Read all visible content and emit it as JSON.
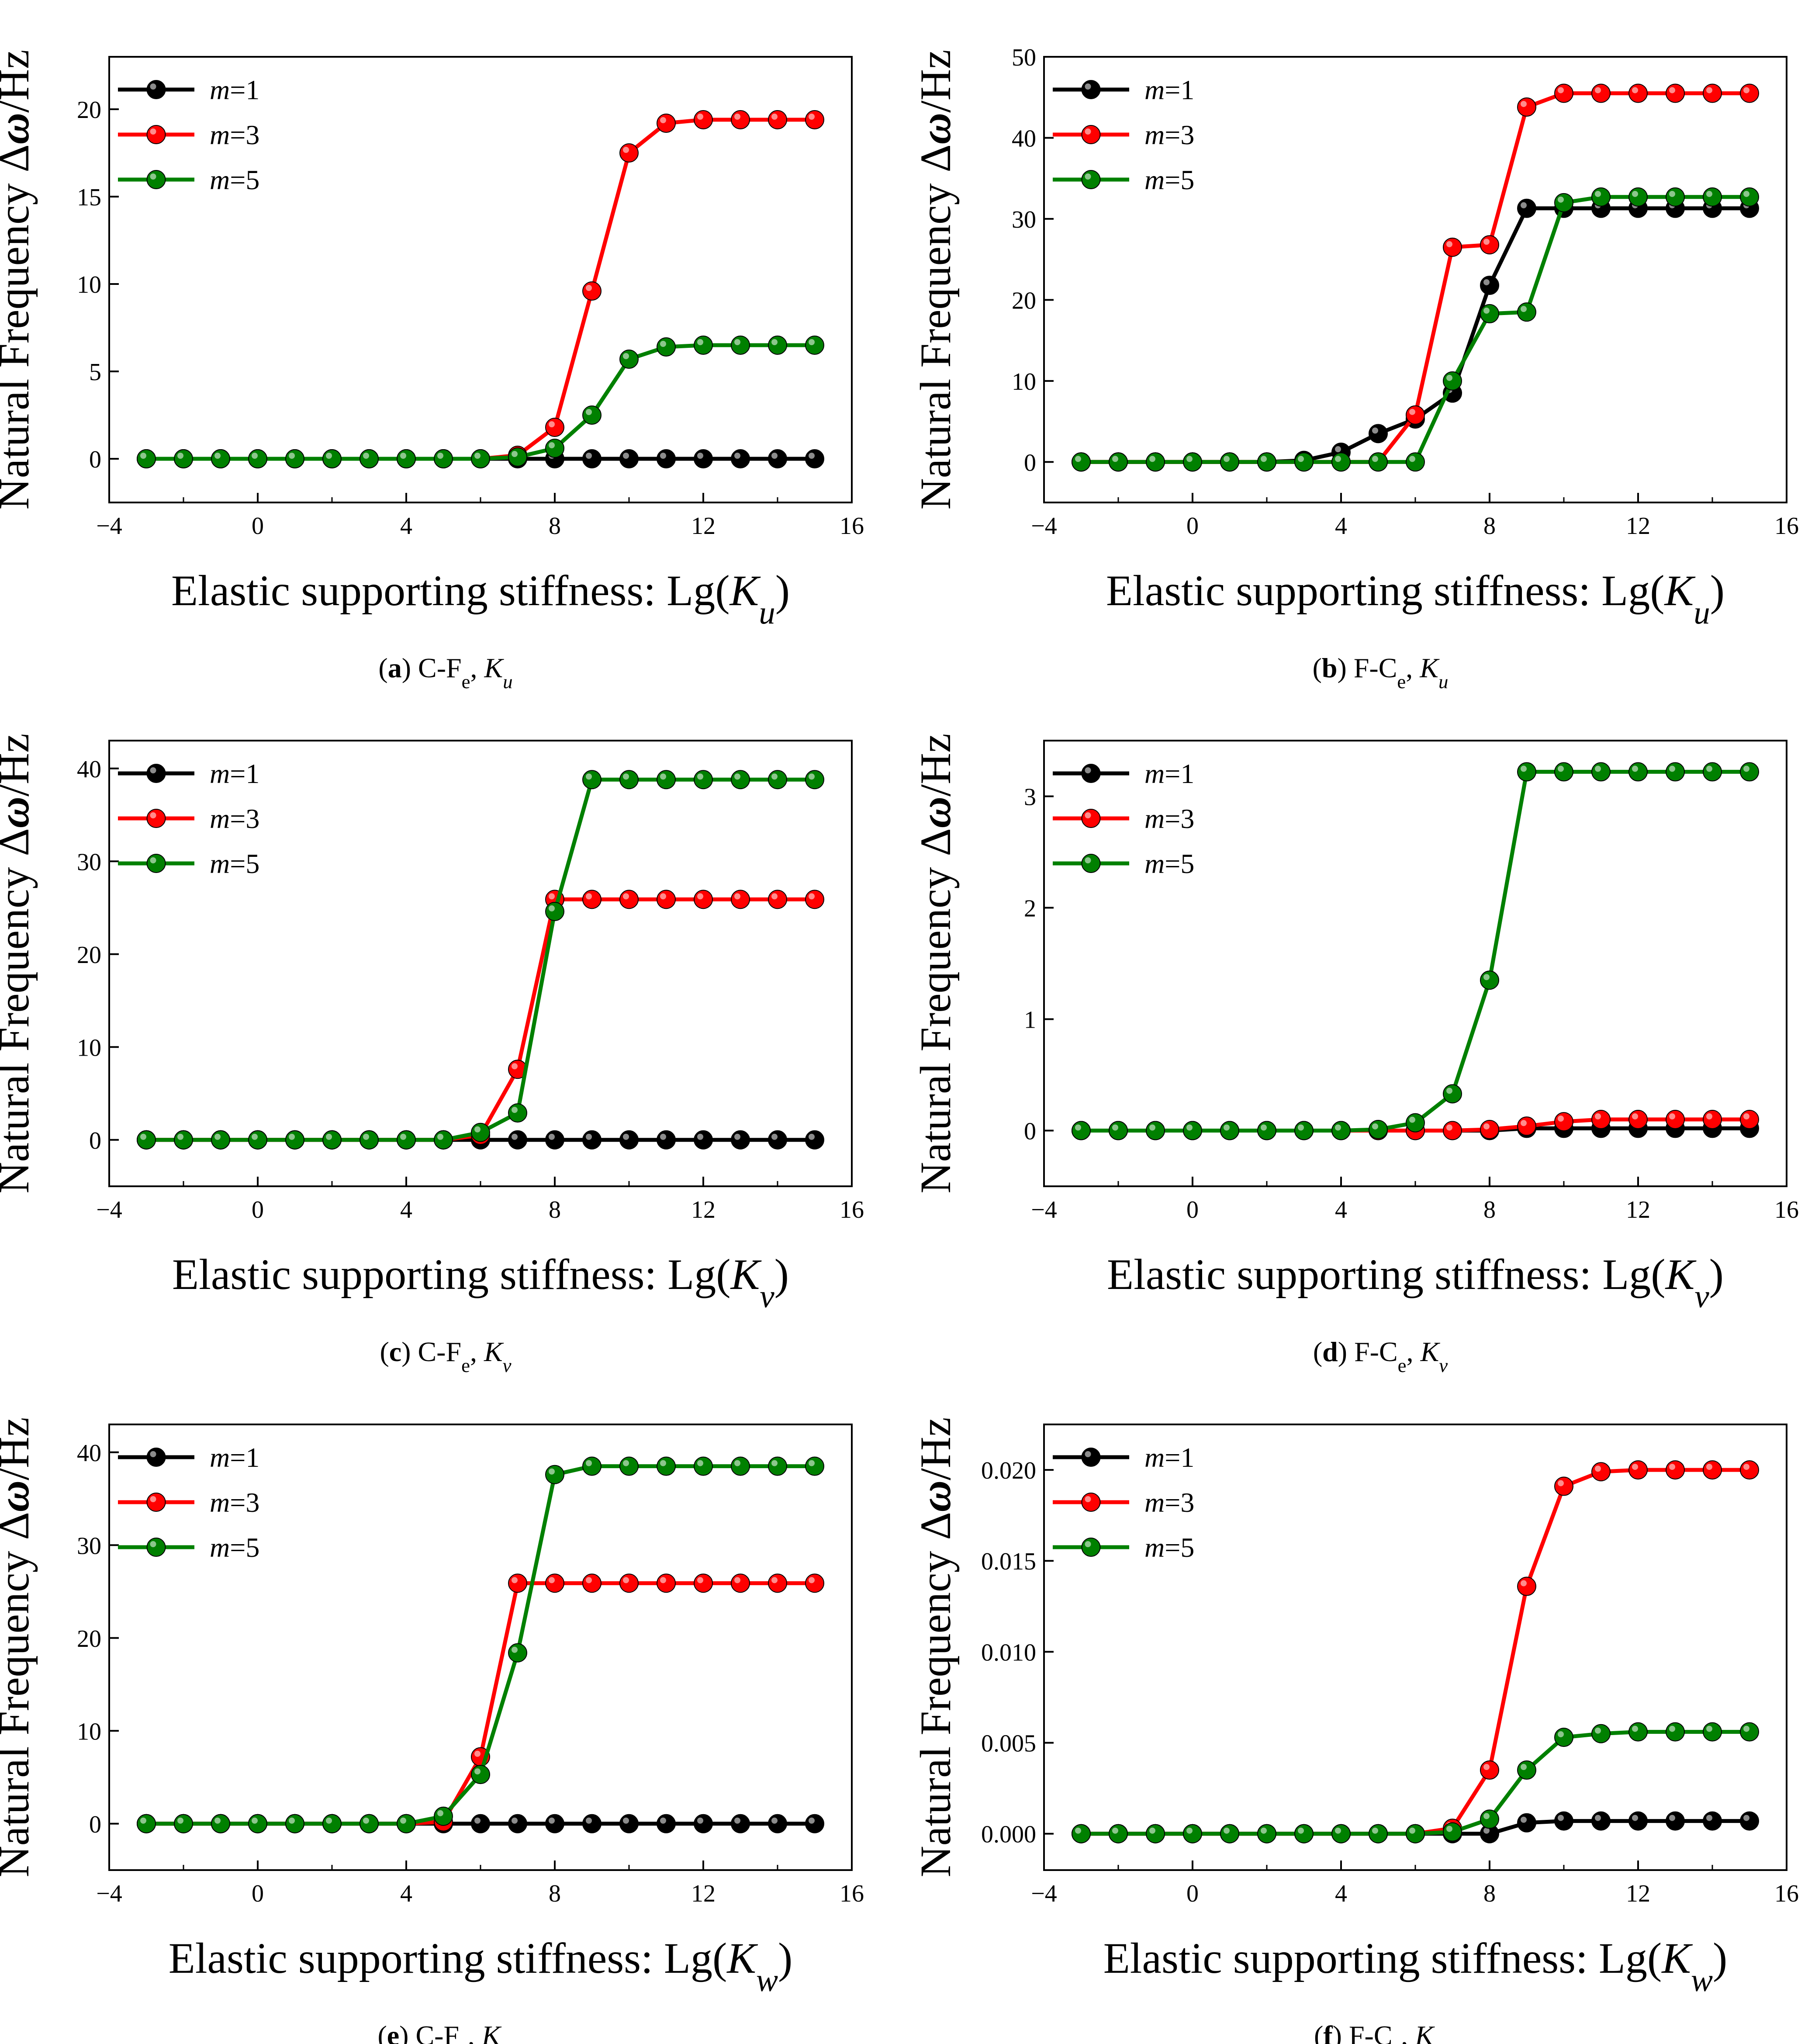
{
  "chart_data": [
    {
      "type": "line",
      "caption": {
        "letter": "a",
        "text": "C-Fe, Ku"
      },
      "xlabel": "Elastic supporting stiffness: Lg(Ku)",
      "ylabel": "Natural Frequency Δω/Hz",
      "xlim": [
        -4,
        16
      ],
      "ylim": [
        -2.5,
        23
      ],
      "xticks": [
        "−4",
        "0",
        "4",
        "8",
        "12",
        "16"
      ],
      "yticks": [
        "0",
        "5",
        "10",
        "15",
        "20"
      ],
      "ytick_values": [
        0,
        5,
        10,
        15,
        20
      ],
      "legend_position": "top-left",
      "x": [
        -3,
        -2,
        -1,
        0,
        1,
        2,
        3,
        4,
        5,
        6,
        7,
        8,
        9,
        10,
        11,
        12,
        13,
        14,
        15
      ],
      "series": [
        {
          "name": "m=1",
          "color": "#000000",
          "values": [
            0,
            0,
            0,
            0,
            0,
            0,
            0,
            0,
            0,
            0,
            0,
            0,
            0,
            0,
            0,
            0,
            0,
            0,
            0
          ]
        },
        {
          "name": "m=3",
          "color": "#ff0000",
          "values": [
            0,
            0,
            0,
            0,
            0,
            0,
            0,
            0,
            0,
            0,
            0.2,
            1.8,
            9.6,
            17.5,
            19.2,
            19.4,
            19.4,
            19.4,
            19.4
          ]
        },
        {
          "name": "m=5",
          "color": "#008000",
          "values": [
            0,
            0,
            0,
            0,
            0,
            0,
            0,
            0,
            0,
            0,
            0.1,
            0.6,
            2.5,
            5.7,
            6.4,
            6.5,
            6.5,
            6.5,
            6.5
          ]
        }
      ]
    },
    {
      "type": "line",
      "caption": {
        "letter": "b",
        "text": "F-Ce, Ku"
      },
      "xlabel": "Elastic supporting stiffness: Lg(Ku)",
      "ylabel": "Natural Frequency Δω/Hz",
      "xlim": [
        -4,
        16
      ],
      "ylim": [
        -5,
        50
      ],
      "xticks": [
        "−4",
        "0",
        "4",
        "8",
        "12",
        "16"
      ],
      "yticks": [
        "0",
        "10",
        "20",
        "30",
        "40",
        "50"
      ],
      "ytick_values": [
        0,
        10,
        20,
        30,
        40,
        50
      ],
      "legend_position": "top-left",
      "x": [
        -3,
        -2,
        -1,
        0,
        1,
        2,
        3,
        4,
        5,
        6,
        7,
        8,
        9,
        10,
        11,
        12,
        13,
        14,
        15
      ],
      "series": [
        {
          "name": "m=1",
          "color": "#000000",
          "values": [
            0,
            0,
            0,
            0,
            0,
            0,
            0.2,
            1.2,
            3.5,
            5.3,
            8.5,
            21.8,
            31.3,
            31.3,
            31.3,
            31.3,
            31.3,
            31.3,
            31.3
          ]
        },
        {
          "name": "m=3",
          "color": "#ff0000",
          "values": [
            0,
            0,
            0,
            0,
            0,
            0,
            0,
            0,
            0,
            5.8,
            26.5,
            26.8,
            43.8,
            45.5,
            45.5,
            45.5,
            45.5,
            45.5,
            45.5
          ]
        },
        {
          "name": "m=5",
          "color": "#008000",
          "values": [
            0,
            0,
            0,
            0,
            0,
            0,
            0,
            0,
            0,
            0,
            10,
            18.3,
            18.5,
            32,
            32.7,
            32.7,
            32.7,
            32.7,
            32.7
          ]
        }
      ]
    },
    {
      "type": "line",
      "caption": {
        "letter": "c",
        "text": "C-Fe, Kv"
      },
      "xlabel": "Elastic supporting stiffness: Lg(Kv)",
      "ylabel": "Natural Frequency Δω/Hz",
      "xlim": [
        -4,
        16
      ],
      "ylim": [
        -5,
        43
      ],
      "xticks": [
        "−4",
        "0",
        "4",
        "8",
        "12",
        "16"
      ],
      "yticks": [
        "0",
        "10",
        "20",
        "30",
        "40"
      ],
      "ytick_values": [
        0,
        10,
        20,
        30,
        40
      ],
      "legend_position": "top-left",
      "x": [
        -3,
        -2,
        -1,
        0,
        1,
        2,
        3,
        4,
        5,
        6,
        7,
        8,
        9,
        10,
        11,
        12,
        13,
        14,
        15
      ],
      "series": [
        {
          "name": "m=1",
          "color": "#000000",
          "values": [
            0,
            0,
            0,
            0,
            0,
            0,
            0,
            0,
            0,
            0,
            0,
            0,
            0,
            0,
            0,
            0,
            0,
            0,
            0
          ]
        },
        {
          "name": "m=3",
          "color": "#ff0000",
          "values": [
            0,
            0,
            0,
            0,
            0,
            0,
            0,
            0,
            0,
            0.5,
            7.6,
            25.9,
            25.9,
            25.9,
            25.9,
            25.9,
            25.9,
            25.9,
            25.9
          ]
        },
        {
          "name": "m=5",
          "color": "#008000",
          "values": [
            0,
            0,
            0,
            0,
            0,
            0,
            0,
            0,
            0,
            0.8,
            2.9,
            24.6,
            38.8,
            38.8,
            38.8,
            38.8,
            38.8,
            38.8,
            38.8
          ]
        }
      ]
    },
    {
      "type": "line",
      "caption": {
        "letter": "d",
        "text": "F-Ce, Kv"
      },
      "xlabel": "Elastic supporting stiffness: Lg(Kv)",
      "ylabel": "Natural Frequency Δω/Hz",
      "xlim": [
        -4,
        16
      ],
      "ylim": [
        -0.5,
        3.5
      ],
      "xticks": [
        "−4",
        "0",
        "4",
        "8",
        "12",
        "16"
      ],
      "yticks": [
        "0",
        "1",
        "2",
        "3"
      ],
      "ytick_values": [
        0,
        1,
        2,
        3
      ],
      "legend_position": "top-left",
      "x": [
        -3,
        -2,
        -1,
        0,
        1,
        2,
        3,
        4,
        5,
        6,
        7,
        8,
        9,
        10,
        11,
        12,
        13,
        14,
        15
      ],
      "series": [
        {
          "name": "m=1",
          "color": "#000000",
          "values": [
            0,
            0,
            0,
            0,
            0,
            0,
            0,
            0,
            0,
            0,
            0,
            0,
            0.02,
            0.02,
            0.02,
            0.02,
            0.02,
            0.02,
            0.02
          ]
        },
        {
          "name": "m=3",
          "color": "#ff0000",
          "values": [
            0,
            0,
            0,
            0,
            0,
            0,
            0,
            0,
            0,
            0,
            0,
            0.01,
            0.04,
            0.08,
            0.1,
            0.1,
            0.1,
            0.1,
            0.1
          ]
        },
        {
          "name": "m=5",
          "color": "#008000",
          "values": [
            0,
            0,
            0,
            0,
            0,
            0,
            0,
            0,
            0.01,
            0.07,
            0.33,
            1.35,
            3.22,
            3.22,
            3.22,
            3.22,
            3.22,
            3.22,
            3.22
          ]
        }
      ]
    },
    {
      "type": "line",
      "caption": {
        "letter": "e",
        "text": "C-Fe, Kw"
      },
      "xlabel": "Elastic supporting stiffness: Lg(Kw)",
      "ylabel": "Natural Frequency Δω/Hz",
      "xlim": [
        -4,
        16
      ],
      "ylim": [
        -5,
        43
      ],
      "xticks": [
        "−4",
        "0",
        "4",
        "8",
        "12",
        "16"
      ],
      "yticks": [
        "0",
        "10",
        "20",
        "30",
        "40"
      ],
      "ytick_values": [
        0,
        10,
        20,
        30,
        40
      ],
      "legend_position": "top-left",
      "x": [
        -3,
        -2,
        -1,
        0,
        1,
        2,
        3,
        4,
        5,
        6,
        7,
        8,
        9,
        10,
        11,
        12,
        13,
        14,
        15
      ],
      "series": [
        {
          "name": "m=1",
          "color": "#000000",
          "values": [
            0,
            0,
            0,
            0,
            0,
            0,
            0,
            0,
            0,
            0,
            0,
            0,
            0,
            0,
            0,
            0,
            0,
            0,
            0
          ]
        },
        {
          "name": "m=3",
          "color": "#ff0000",
          "values": [
            0,
            0,
            0,
            0,
            0,
            0,
            0,
            0,
            0.2,
            7.2,
            25.9,
            25.9,
            25.9,
            25.9,
            25.9,
            25.9,
            25.9,
            25.9,
            25.9
          ]
        },
        {
          "name": "m=5",
          "color": "#008000",
          "values": [
            0,
            0,
            0,
            0,
            0,
            0,
            0,
            0,
            0.8,
            5.3,
            18.4,
            37.6,
            38.5,
            38.5,
            38.5,
            38.5,
            38.5,
            38.5,
            38.5
          ]
        }
      ]
    },
    {
      "type": "line",
      "caption": {
        "letter": "f",
        "text": "F-Ce, Kw"
      },
      "xlabel": "Elastic supporting stiffness: Lg(Kw)",
      "ylabel": "Natural Frequency Δω/Hz",
      "xlim": [
        -4,
        16
      ],
      "ylim": [
        -0.002,
        0.0225
      ],
      "xticks": [
        "−4",
        "0",
        "4",
        "8",
        "12",
        "16"
      ],
      "yticks": [
        "0.000",
        "0.005",
        "0.010",
        "0.015",
        "0.020"
      ],
      "ytick_values": [
        0,
        0.005,
        0.01,
        0.015,
        0.02
      ],
      "legend_position": "top-left",
      "x": [
        -3,
        -2,
        -1,
        0,
        1,
        2,
        3,
        4,
        5,
        6,
        7,
        8,
        9,
        10,
        11,
        12,
        13,
        14,
        15
      ],
      "series": [
        {
          "name": "m=1",
          "color": "#000000",
          "values": [
            0,
            0,
            0,
            0,
            0,
            0,
            0,
            0,
            0,
            0,
            0,
            0,
            0.0006,
            0.0007,
            0.0007,
            0.0007,
            0.0007,
            0.0007,
            0.0007
          ]
        },
        {
          "name": "m=3",
          "color": "#ff0000",
          "values": [
            0,
            0,
            0,
            0,
            0,
            0,
            0,
            0,
            0,
            0,
            0.0003,
            0.0035,
            0.0136,
            0.0191,
            0.0199,
            0.02,
            0.02,
            0.02,
            0.02
          ]
        },
        {
          "name": "m=5",
          "color": "#008000",
          "values": [
            0,
            0,
            0,
            0,
            0,
            0,
            0,
            0,
            0,
            0,
            0.0001,
            0.0008,
            0.0035,
            0.0053,
            0.0055,
            0.0056,
            0.0056,
            0.0056,
            0.0056
          ]
        }
      ]
    }
  ]
}
